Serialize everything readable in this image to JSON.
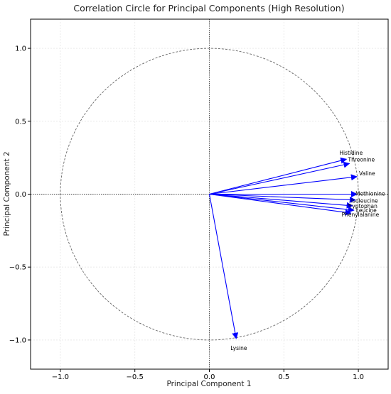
{
  "chart_data": {
    "type": "scatter",
    "subtype": "correlation-circle",
    "title": "Correlation Circle for Principal Components (High Resolution)",
    "xlabel": "Principal Component 1",
    "ylabel": "Principal Component 2",
    "xlim": [
      -1.2,
      1.2
    ],
    "ylim": [
      -1.2,
      1.2
    ],
    "xticks": [
      -1.0,
      -0.5,
      0.0,
      0.5,
      1.0
    ],
    "yticks": [
      -1.0,
      -0.5,
      0.0,
      0.5,
      1.0
    ],
    "xtick_labels": [
      "−1.0",
      "−0.5",
      "0.0",
      "0.5",
      "1.0"
    ],
    "ytick_labels": [
      "−1.0",
      "−0.5",
      "0.0",
      "0.5",
      "1.0"
    ],
    "grid": true,
    "unit_circle": true,
    "origin_lines": true,
    "arrow_color": "#0000ff",
    "circle_color": "#666666",
    "series": [
      {
        "name": "Histidine",
        "x": 0.92,
        "y": 0.24
      },
      {
        "name": "Threonine",
        "x": 0.94,
        "y": 0.21
      },
      {
        "name": "Valine",
        "x": 0.99,
        "y": 0.12
      },
      {
        "name": "Methionine",
        "x": 0.99,
        "y": 0.0
      },
      {
        "name": "Isoleucine",
        "x": 0.98,
        "y": -0.04
      },
      {
        "name": "Tryptophan",
        "x": 0.96,
        "y": -0.08
      },
      {
        "name": "Leucine",
        "x": 0.97,
        "y": -0.11
      },
      {
        "name": "Phenylalanine",
        "x": 0.95,
        "y": -0.13
      },
      {
        "name": "Lysine",
        "x": 0.18,
        "y": -0.99
      }
    ]
  }
}
